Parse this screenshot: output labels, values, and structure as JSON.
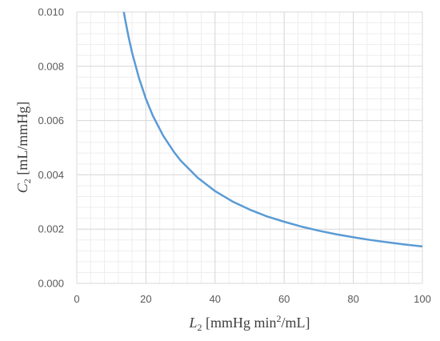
{
  "chart_data": {
    "type": "line",
    "title": "",
    "x_axis": {
      "label_symbol": "L",
      "label_subscript": "2",
      "label_unit_prefix": " [mmHg min",
      "label_unit_sup": "2",
      "label_unit_suffix": "/mL]",
      "min": 0,
      "max": 100,
      "ticks": [
        "0",
        "20",
        "40",
        "60",
        "80",
        "100"
      ],
      "minor_step": 4
    },
    "y_axis": {
      "label_symbol": "C",
      "label_subscript": "2",
      "label_unit": " [mL/mmHg]",
      "min": 0,
      "max": 0.01,
      "ticks": [
        "0.000",
        "0.002",
        "0.004",
        "0.006",
        "0.008",
        "0.010"
      ],
      "minor_step": 0.0004
    },
    "grid": true,
    "legend": "none",
    "series": [
      {
        "color": "#5b9bd5",
        "x": [
          13.6,
          14,
          15,
          16,
          18,
          20,
          22,
          25,
          28,
          30,
          35,
          40,
          45,
          50,
          55,
          60,
          65,
          70,
          75,
          80,
          85,
          90,
          95,
          100
        ],
        "y": [
          0.01,
          0.00971,
          0.00907,
          0.0085,
          0.00756,
          0.0068,
          0.00618,
          0.00544,
          0.00486,
          0.00453,
          0.00389,
          0.0034,
          0.00302,
          0.00272,
          0.00247,
          0.00227,
          0.00209,
          0.00194,
          0.00181,
          0.0017,
          0.0016,
          0.00151,
          0.00143,
          0.00136
        ]
      }
    ]
  }
}
